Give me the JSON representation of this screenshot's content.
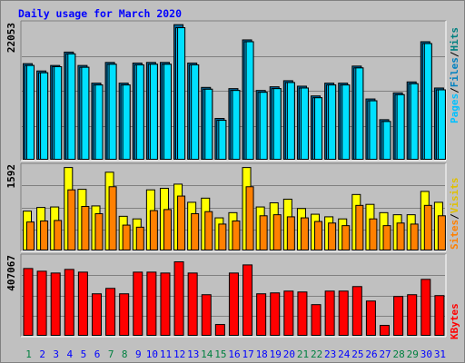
{
  "chart_data": [
    {
      "type": "bar",
      "title": "Daily usage for March 2020",
      "panel": "hits-files-pages",
      "categories": [
        "1",
        "2",
        "3",
        "4",
        "5",
        "6",
        "7",
        "8",
        "9",
        "10",
        "11",
        "12",
        "13",
        "14",
        "15",
        "16",
        "17",
        "18",
        "19",
        "20",
        "21",
        "22",
        "23",
        "24",
        "25",
        "26",
        "27",
        "28",
        "29",
        "30",
        "31"
      ],
      "weekend_days": [
        1,
        7,
        8,
        14,
        15,
        21,
        22,
        28,
        29
      ],
      "max_label": "22053",
      "ylim": [
        0,
        22053
      ],
      "legend": {
        "pages": "Pages",
        "files": "Files",
        "hits": "Hits",
        "separator": "/"
      },
      "series": [
        {
          "name": "Hits",
          "values": [
            15700,
            14500,
            15400,
            17600,
            15400,
            12500,
            15900,
            12500,
            15800,
            15900,
            15900,
            22100,
            15800,
            11800,
            6700,
            11600,
            19600,
            11300,
            11900,
            12900,
            12000,
            10400,
            12500,
            12500,
            15300,
            9900,
            6500,
            10900,
            12700,
            19300,
            11700
          ]
        },
        {
          "name": "Files",
          "values": [
            15400,
            14200,
            15200,
            17300,
            15100,
            12200,
            15600,
            12200,
            15500,
            15600,
            15600,
            21600,
            15500,
            11500,
            6400,
            11300,
            19300,
            11000,
            11600,
            12600,
            11700,
            10100,
            12200,
            12200,
            15000,
            9600,
            6200,
            10600,
            12400,
            19000,
            11400
          ]
        },
        {
          "name": "Pages",
          "values": [
            15400,
            14200,
            15200,
            17300,
            15100,
            12200,
            15600,
            12200,
            15500,
            15600,
            15600,
            21600,
            15500,
            11500,
            6400,
            11300,
            19300,
            11000,
            11600,
            12600,
            11700,
            10100,
            12200,
            12200,
            15000,
            9600,
            6200,
            10600,
            12400,
            19000,
            11400
          ]
        }
      ],
      "colors": {
        "Hits": "#006699",
        "Files": "#00c0ff",
        "Pages": "#00e0ff"
      }
    },
    {
      "type": "bar",
      "panel": "visits-sites",
      "categories": [
        "1",
        "2",
        "3",
        "4",
        "5",
        "6",
        "7",
        "8",
        "9",
        "10",
        "11",
        "12",
        "13",
        "14",
        "15",
        "16",
        "17",
        "18",
        "19",
        "20",
        "21",
        "22",
        "23",
        "24",
        "25",
        "26",
        "27",
        "28",
        "29",
        "30",
        "31"
      ],
      "max_label": "1592",
      "ylim": [
        0,
        1592
      ],
      "legend": {
        "sites": "Sites",
        "visits": "Visits",
        "separator": "/"
      },
      "series": [
        {
          "name": "Visits",
          "values": [
            750,
            820,
            830,
            1590,
            1170,
            850,
            1500,
            650,
            600,
            1160,
            1190,
            1270,
            920,
            1000,
            620,
            720,
            1590,
            830,
            910,
            980,
            800,
            690,
            640,
            600,
            1070,
            880,
            720,
            680,
            680,
            1130,
            920
          ]
        },
        {
          "name": "Sites",
          "values": [
            540,
            560,
            570,
            1160,
            840,
            700,
            1220,
            480,
            440,
            760,
            780,
            1040,
            700,
            740,
            500,
            560,
            1220,
            660,
            680,
            640,
            620,
            550,
            520,
            470,
            860,
            600,
            470,
            520,
            500,
            860,
            660
          ]
        }
      ],
      "colors": {
        "Visits": "#ffff00",
        "Sites": "#ff8000"
      }
    },
    {
      "type": "bar",
      "panel": "kbytes",
      "categories": [
        "1",
        "2",
        "3",
        "4",
        "5",
        "6",
        "7",
        "8",
        "9",
        "10",
        "11",
        "12",
        "13",
        "14",
        "15",
        "16",
        "17",
        "18",
        "19",
        "20",
        "21",
        "22",
        "23",
        "24",
        "25",
        "26",
        "27",
        "28",
        "29",
        "30",
        "31"
      ],
      "max_label": "407067",
      "ylim": [
        0,
        407067
      ],
      "legend": {
        "kbytes": "KBytes"
      },
      "series": [
        {
          "name": "KBytes",
          "values": [
            370000,
            355000,
            345000,
            365000,
            350000,
            230000,
            260000,
            230000,
            350000,
            350000,
            345000,
            407067,
            345000,
            225000,
            60000,
            345000,
            390000,
            230000,
            235000,
            245000,
            240000,
            170000,
            245000,
            245000,
            270000,
            190000,
            55000,
            215000,
            225000,
            310000,
            220000
          ]
        }
      ],
      "colors": {
        "KBytes": "#ff0000"
      }
    }
  ]
}
